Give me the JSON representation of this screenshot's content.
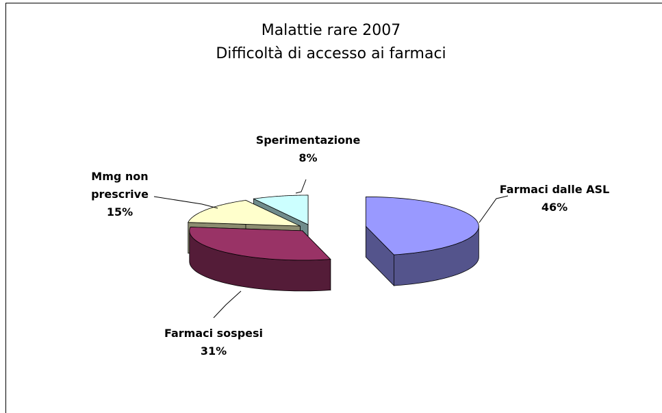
{
  "chart_data": {
    "type": "pie3d",
    "title": "Malattie rare 2007",
    "subtitle": "Difficoltà di accesso ai farmaci",
    "categories": [
      "Farmaci dalle ASL",
      "Farmaci sospesi",
      "Mmg non prescrive",
      "Sperimentazione"
    ],
    "values": [
      46,
      31,
      15,
      8
    ],
    "value_labels": [
      "46%",
      "31%",
      "15%",
      "8%"
    ],
    "colors": [
      "#9999ff",
      "#993366",
      "#ffffcc",
      "#ccffff"
    ]
  }
}
